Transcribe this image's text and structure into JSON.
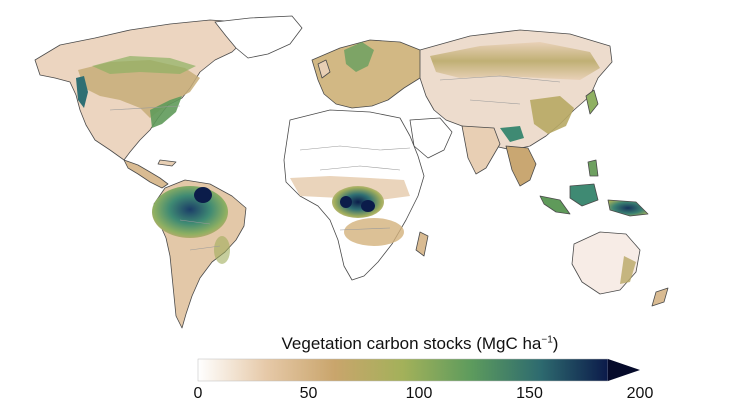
{
  "colorbar": {
    "title_main": "Vegetation carbon stocks (MgC ha",
    "title_sup": "−1",
    "title_close": ")",
    "ticks": [
      "0",
      "50",
      "100",
      "150",
      "200"
    ],
    "tick_values": [
      0,
      50,
      100,
      150,
      200
    ],
    "range": [
      0,
      200
    ],
    "extend": "max",
    "colors": [
      "#ffffff",
      "#e6c9a8",
      "#c9a56c",
      "#a3b15a",
      "#5d9b5d",
      "#2e6b6f",
      "#0b1a4a"
    ]
  },
  "map": {
    "ocean_color": "#ffffff",
    "palette": {
      "very_low": "#f5e9e4",
      "low": "#e8cfb4",
      "medium": "#c9a772",
      "medium_high": "#a0ad5c",
      "high": "#5f9a5a",
      "very_high": "#2f6f73",
      "peak": "#0b1c4a"
    }
  }
}
